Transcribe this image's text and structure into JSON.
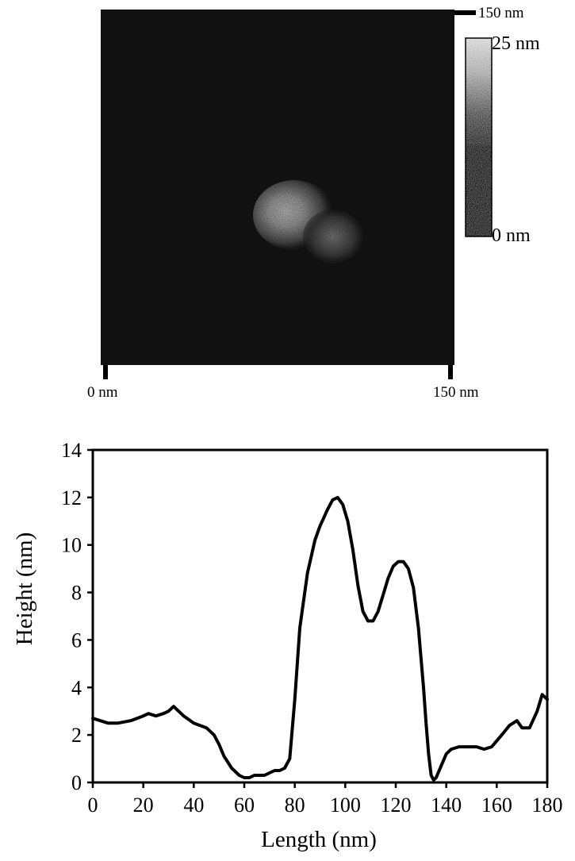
{
  "afm_image": {
    "x_axis": {
      "start_label": "0 nm",
      "end_label": "150 nm"
    },
    "y_axis": {
      "end_label": "150 nm"
    },
    "colorbar": {
      "max_label": "25 nm",
      "min_label": "0 nm"
    }
  },
  "chart_data": {
    "type": "line",
    "title": "",
    "xlabel": "Length (nm)",
    "ylabel": "Height (nm)",
    "xlim": [
      0,
      180
    ],
    "ylim": [
      0,
      14
    ],
    "xticks": [
      0,
      20,
      40,
      60,
      80,
      100,
      120,
      140,
      160,
      180
    ],
    "yticks": [
      0,
      2,
      4,
      6,
      8,
      10,
      12,
      14
    ],
    "grid": false,
    "legend": "none",
    "series": [
      {
        "color": "#000000",
        "x": [
          0,
          3,
          6,
          10,
          15,
          20,
          22,
          25,
          28,
          30,
          32,
          34,
          36,
          40,
          45,
          48,
          50,
          52,
          55,
          58,
          60,
          62,
          64,
          66,
          68,
          70,
          72,
          74,
          76,
          78,
          80,
          82,
          85,
          88,
          90,
          93,
          95,
          97,
          99,
          101,
          103,
          105,
          107,
          109,
          111,
          113,
          115,
          117,
          119,
          121,
          123,
          125,
          127,
          129,
          131,
          132,
          133,
          134,
          135,
          136,
          138,
          140,
          142,
          145,
          148,
          152,
          155,
          158,
          162,
          165,
          168,
          170,
          173,
          176,
          178,
          180
        ],
        "y": [
          2.7,
          2.6,
          2.5,
          2.5,
          2.6,
          2.8,
          2.9,
          2.8,
          2.9,
          3.0,
          3.2,
          3.0,
          2.8,
          2.5,
          2.3,
          2.0,
          1.6,
          1.1,
          0.6,
          0.3,
          0.2,
          0.2,
          0.3,
          0.3,
          0.3,
          0.4,
          0.5,
          0.5,
          0.6,
          1.0,
          3.5,
          6.5,
          8.8,
          10.2,
          10.8,
          11.5,
          11.9,
          12.0,
          11.7,
          11.0,
          9.8,
          8.3,
          7.2,
          6.8,
          6.8,
          7.2,
          7.9,
          8.6,
          9.1,
          9.3,
          9.3,
          9.0,
          8.2,
          6.5,
          4.0,
          2.5,
          1.2,
          0.3,
          0.1,
          0.2,
          0.7,
          1.2,
          1.4,
          1.5,
          1.5,
          1.5,
          1.4,
          1.5,
          2.0,
          2.4,
          2.6,
          2.3,
          2.3,
          3.0,
          3.7,
          3.5
        ]
      }
    ]
  }
}
